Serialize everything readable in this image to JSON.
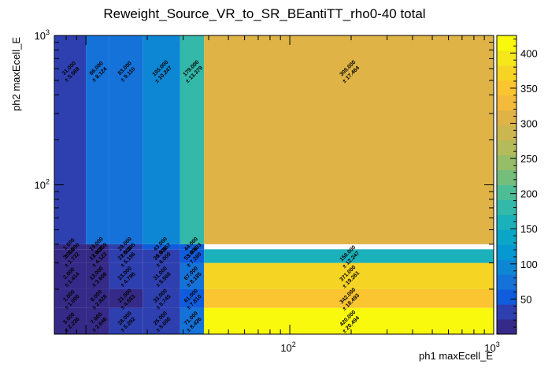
{
  "chart_data": {
    "type": "heatmap",
    "title": "Reweight_Source_VR_to_SR_BEantiTT_rho0-40 total",
    "xlabel": "ph1 maxEcell_E",
    "ylabel": "ph2 maxEcell_E",
    "x_scale": "log",
    "y_scale": "log",
    "xlim": [
      7,
      1000
    ],
    "ylim": [
      10,
      1000
    ],
    "x_ticks": [
      {
        "value": 100,
        "base": "10",
        "exp": "2"
      },
      {
        "value": 1000,
        "base": "10",
        "exp": "3"
      }
    ],
    "y_ticks": [
      {
        "value": 100,
        "base": "10",
        "exp": "2"
      },
      {
        "value": 1000,
        "base": "10",
        "exp": "3"
      }
    ],
    "x_edges": [
      7,
      10,
      13,
      19,
      29,
      38,
      1000
    ],
    "y_edges": [
      10,
      15,
      20,
      30,
      37,
      40,
      1000
    ],
    "cells": [
      {
        "xi": 0,
        "yi": 0,
        "value": 5,
        "text": "5.000",
        "err": "± 2.236"
      },
      {
        "xi": 1,
        "yi": 0,
        "value": 7,
        "text": "7.000",
        "err": "± 2.646"
      },
      {
        "xi": 2,
        "yi": 0,
        "value": 28,
        "text": "28.000",
        "err": "± 5.292"
      },
      {
        "xi": 3,
        "yi": 0,
        "value": 25,
        "text": "25.000",
        "err": "± 5.000"
      },
      {
        "xi": 4,
        "yi": 0,
        "value": 71,
        "text": "71.000",
        "err": "± 8.426"
      },
      {
        "xi": 5,
        "yi": 0,
        "value": 420,
        "text": "420.000",
        "err": "± 20.494"
      },
      {
        "xi": 0,
        "yi": 1,
        "value": 1,
        "text": "1.000",
        "err": "± 1.000"
      },
      {
        "xi": 1,
        "yi": 1,
        "value": 8,
        "text": "8.000",
        "err": "± 2.828"
      },
      {
        "xi": 2,
        "yi": 1,
        "value": 21,
        "text": "21.000",
        "err": "± 4.583"
      },
      {
        "xi": 3,
        "yi": 1,
        "value": 33,
        "text": "33.000",
        "err": "± 5.745"
      },
      {
        "xi": 4,
        "yi": 1,
        "value": 61,
        "text": "61.000",
        "err": "± 7.810"
      },
      {
        "xi": 5,
        "yi": 1,
        "value": 342,
        "text": "342.000",
        "err": "± 18.493"
      },
      {
        "xi": 0,
        "yi": 2,
        "value": 2,
        "text": "2.000",
        "err": "± 1.414"
      },
      {
        "xi": 1,
        "yi": 2,
        "value": 13,
        "text": "13.000",
        "err": "± 3.606"
      },
      {
        "xi": 2,
        "yi": 2,
        "value": 23,
        "text": "23.000",
        "err": "± 4.796"
      },
      {
        "xi": 3,
        "yi": 2,
        "value": 31,
        "text": "31.000",
        "err": "± 5.568"
      },
      {
        "xi": 4,
        "yi": 2,
        "value": 67,
        "text": "67.000",
        "err": "± 8.185"
      },
      {
        "xi": 5,
        "yi": 2,
        "value": 371,
        "text": "371.000",
        "err": "± 19.261"
      },
      {
        "xi": 0,
        "yi": 3,
        "value": 3,
        "text": "3.000",
        "err": "± 1.732"
      },
      {
        "xi": 1,
        "yi": 3,
        "value": 17,
        "text": "17.000",
        "err": "± 4.123"
      },
      {
        "xi": 2,
        "yi": 3,
        "value": 27,
        "text": "27.000",
        "err": "± 5.196"
      },
      {
        "xi": 3,
        "yi": 3,
        "value": 36,
        "text": "36.000",
        "err": "± 6.000"
      },
      {
        "xi": 4,
        "yi": 3,
        "value": 53,
        "text": "53.000",
        "err": "± 7.280"
      },
      {
        "xi": 5,
        "yi": 3,
        "value": 150,
        "text": "150.000",
        "err": "± 12.247"
      },
      {
        "xi": 0,
        "yi": 4,
        "value": 1,
        "text": "1.000",
        "err": "± 1.000"
      },
      {
        "xi": 1,
        "yi": 4,
        "value": 19,
        "text": "19.000",
        "err": "± 4.359"
      },
      {
        "xi": 2,
        "yi": 4,
        "value": 29,
        "text": "29.000",
        "err": "± 5.385"
      },
      {
        "xi": 3,
        "yi": 4,
        "value": 43,
        "text": "43.000",
        "err": "± 6.557"
      },
      {
        "xi": 4,
        "yi": 4,
        "value": 44,
        "text": "44.000",
        "err": "± 6.633"
      },
      {
        "xi": 0,
        "yi": 5,
        "value": 31,
        "text": "31.000",
        "err": "± 5.568"
      },
      {
        "xi": 1,
        "yi": 5,
        "value": 66,
        "text": "66.000",
        "err": "± 8.124"
      },
      {
        "xi": 2,
        "yi": 5,
        "value": 83,
        "text": "83.000",
        "err": "± 9.110"
      },
      {
        "xi": 3,
        "yi": 5,
        "value": 105,
        "text": "105.000",
        "err": "± 10.247"
      },
      {
        "xi": 4,
        "yi": 5,
        "value": 179,
        "text": "179.000",
        "err": "± 13.379"
      },
      {
        "xi": 5,
        "yi": 5,
        "value": 305,
        "text": "305.000",
        "err": "± 17.464"
      }
    ],
    "colorbar": {
      "min": 0,
      "max": 425,
      "ticks": [
        "50",
        "100",
        "150",
        "200",
        "250",
        "300",
        "350",
        "400"
      ],
      "tick_values": [
        50,
        100,
        150,
        200,
        250,
        300,
        350,
        400
      ],
      "palette": [
        "#352a87",
        "#2e3fb0",
        "#0f5cdd",
        "#1472d9",
        "#0d87d4",
        "#0698d1",
        "#0ba6c7",
        "#1ab1bb",
        "#33b8a9",
        "#4cbd95",
        "#74bd7d",
        "#96bd68",
        "#b4bb5a",
        "#ccb650",
        "#dfb346",
        "#f4ba3b",
        "#fbc431",
        "#f6d424",
        "#f5e71a",
        "#f9f90e"
      ]
    },
    "grid": false,
    "legend": "colorbar-right"
  }
}
